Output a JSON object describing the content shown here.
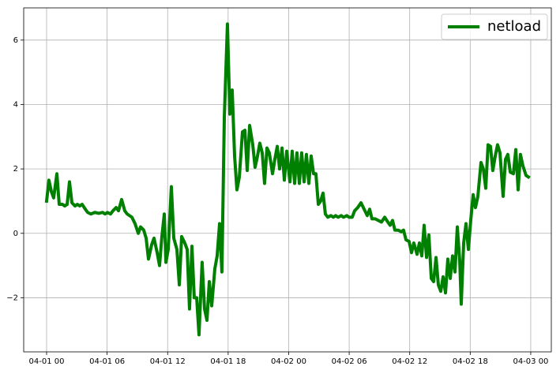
{
  "chart_data": {
    "type": "line",
    "x": [
      0,
      0.23,
      0.47,
      0.7,
      1.02,
      1.25,
      1.57,
      1.8,
      2.04,
      2.27,
      2.51,
      2.82,
      3.05,
      3.29,
      3.52,
      3.84,
      4.07,
      4.39,
      4.78,
      5.17,
      5.56,
      5.79,
      6.03,
      6.34,
      6.58,
      6.89,
      7.13,
      7.44,
      7.75,
      7.99,
      8.46,
      8.77,
      9.09,
      9.32,
      9.63,
      9.87,
      10.1,
      10.42,
      10.65,
      10.96,
      11.2,
      11.43,
      11.67,
      11.83,
      12.06,
      12.37,
      12.61,
      12.92,
      13.16,
      13.39,
      13.7,
      13.94,
      14.17,
      14.41,
      14.64,
      14.88,
      15.11,
      15.42,
      15.66,
      15.9,
      16.13,
      16.37,
      16.68,
      16.91,
      17.15,
      17.38,
      17.62,
      17.93,
      18.17,
      18.4,
      18.64,
      18.87,
      19.11,
      19.42,
      19.66,
      19.89,
      20.13,
      20.44,
      20.67,
      20.91,
      21.14,
      21.38,
      21.61,
      21.85,
      22.08,
      22.4,
      22.63,
      22.87,
      23.1,
      23.34,
      23.57,
      23.81,
      24.12,
      24.35,
      24.59,
      24.82,
      25.06,
      25.29,
      25.53,
      25.76,
      26.0,
      26.23,
      26.47,
      26.7,
      26.94,
      27.17,
      27.41,
      27.64,
      27.88,
      28.19,
      28.43,
      28.66,
      28.9,
      29.21,
      29.44,
      29.76,
      29.99,
      30.3,
      30.54,
      30.85,
      31.17,
      31.48,
      31.79,
      32.03,
      32.26,
      32.58,
      32.89,
      33.2,
      33.52,
      33.83,
      34.06,
      34.3,
      34.53,
      34.85,
      35.16,
      35.39,
      35.63,
      35.94,
      36.18,
      36.41,
      36.73,
      36.96,
      37.2,
      37.43,
      37.67,
      37.9,
      38.14,
      38.37,
      38.61,
      38.84,
      39.08,
      39.31,
      39.55,
      39.78,
      40.02,
      40.25,
      40.49,
      40.72,
      40.96,
      41.11,
      41.35,
      41.58,
      41.82,
      42.05,
      42.29,
      42.52,
      42.76,
      43.07,
      43.3,
      43.54,
      43.77,
      44.01,
      44.24,
      44.48,
      44.71,
      44.95,
      45.26,
      45.5,
      45.73,
      45.97,
      46.28,
      46.52,
      46.75,
      46.98,
      47.22,
      47.53,
      47.77
    ],
    "series": [
      {
        "name": "netload",
        "color": "#008000",
        "values": [
          1.0,
          1.65,
          1.3,
          1.1,
          1.85,
          0.9,
          0.9,
          0.85,
          0.9,
          1.6,
          0.95,
          0.85,
          0.9,
          0.85,
          0.9,
          0.75,
          0.65,
          0.6,
          0.65,
          0.62,
          0.65,
          0.6,
          0.65,
          0.6,
          0.7,
          0.8,
          0.7,
          1.05,
          0.7,
          0.6,
          0.5,
          0.3,
          0.0,
          0.2,
          0.1,
          -0.15,
          -0.8,
          -0.35,
          -0.15,
          -0.6,
          -1.0,
          -0.1,
          0.6,
          -0.9,
          -0.5,
          1.45,
          -0.15,
          -0.5,
          -1.6,
          -0.1,
          -0.3,
          -0.5,
          -2.35,
          -0.4,
          -2.0,
          -2.0,
          -3.15,
          -0.9,
          -2.35,
          -2.7,
          -1.5,
          -2.25,
          -1.1,
          -0.7,
          0.3,
          -1.2,
          3.6,
          6.5,
          3.7,
          4.45,
          2.4,
          1.35,
          1.75,
          3.15,
          3.2,
          1.95,
          3.35,
          2.75,
          2.05,
          2.4,
          2.8,
          2.5,
          1.55,
          2.65,
          2.5,
          1.85,
          2.3,
          2.7,
          2.0,
          2.65,
          1.65,
          2.55,
          1.6,
          2.55,
          1.55,
          2.5,
          1.55,
          2.5,
          1.6,
          2.45,
          1.55,
          2.4,
          1.85,
          1.85,
          0.9,
          1.0,
          1.25,
          0.6,
          0.5,
          0.55,
          0.5,
          0.55,
          0.5,
          0.55,
          0.5,
          0.55,
          0.5,
          0.5,
          0.7,
          0.8,
          0.95,
          0.75,
          0.55,
          0.75,
          0.45,
          0.45,
          0.4,
          0.35,
          0.5,
          0.35,
          0.25,
          0.4,
          0.1,
          0.1,
          0.05,
          0.1,
          -0.2,
          -0.25,
          -0.6,
          -0.3,
          -0.65,
          -0.3,
          -0.7,
          0.25,
          -0.75,
          -0.05,
          -1.4,
          -1.5,
          -0.75,
          -1.6,
          -1.8,
          -1.35,
          -1.85,
          -0.8,
          -1.4,
          -0.7,
          -1.2,
          0.2,
          -0.85,
          -2.2,
          -0.3,
          0.3,
          -0.5,
          0.4,
          1.2,
          0.8,
          1.15,
          2.2,
          2.0,
          1.4,
          2.75,
          2.7,
          1.95,
          2.4,
          2.75,
          2.5,
          1.15,
          2.3,
          2.45,
          1.9,
          1.85,
          2.6,
          1.35,
          2.45,
          2.1,
          1.8,
          1.75
        ]
      }
    ],
    "xlim": [
      -2.27,
      50.04
    ],
    "xticks": [
      {
        "value": 0,
        "label": "04-01 00"
      },
      {
        "value": 6,
        "label": "04-01 06"
      },
      {
        "value": 12,
        "label": "04-01 12"
      },
      {
        "value": 18,
        "label": "04-01 18"
      },
      {
        "value": 24,
        "label": "04-02 00"
      },
      {
        "value": 30,
        "label": "04-02 06"
      },
      {
        "value": 36,
        "label": "04-02 12"
      },
      {
        "value": 42,
        "label": "04-02 18"
      },
      {
        "value": 48,
        "label": "04-03 00"
      }
    ],
    "ylim": [
      -3.68,
      7.0
    ],
    "yticks": [
      {
        "value": -2,
        "label": "−2"
      },
      0,
      2,
      4,
      6
    ],
    "grid": true,
    "legend": "upper-right"
  }
}
